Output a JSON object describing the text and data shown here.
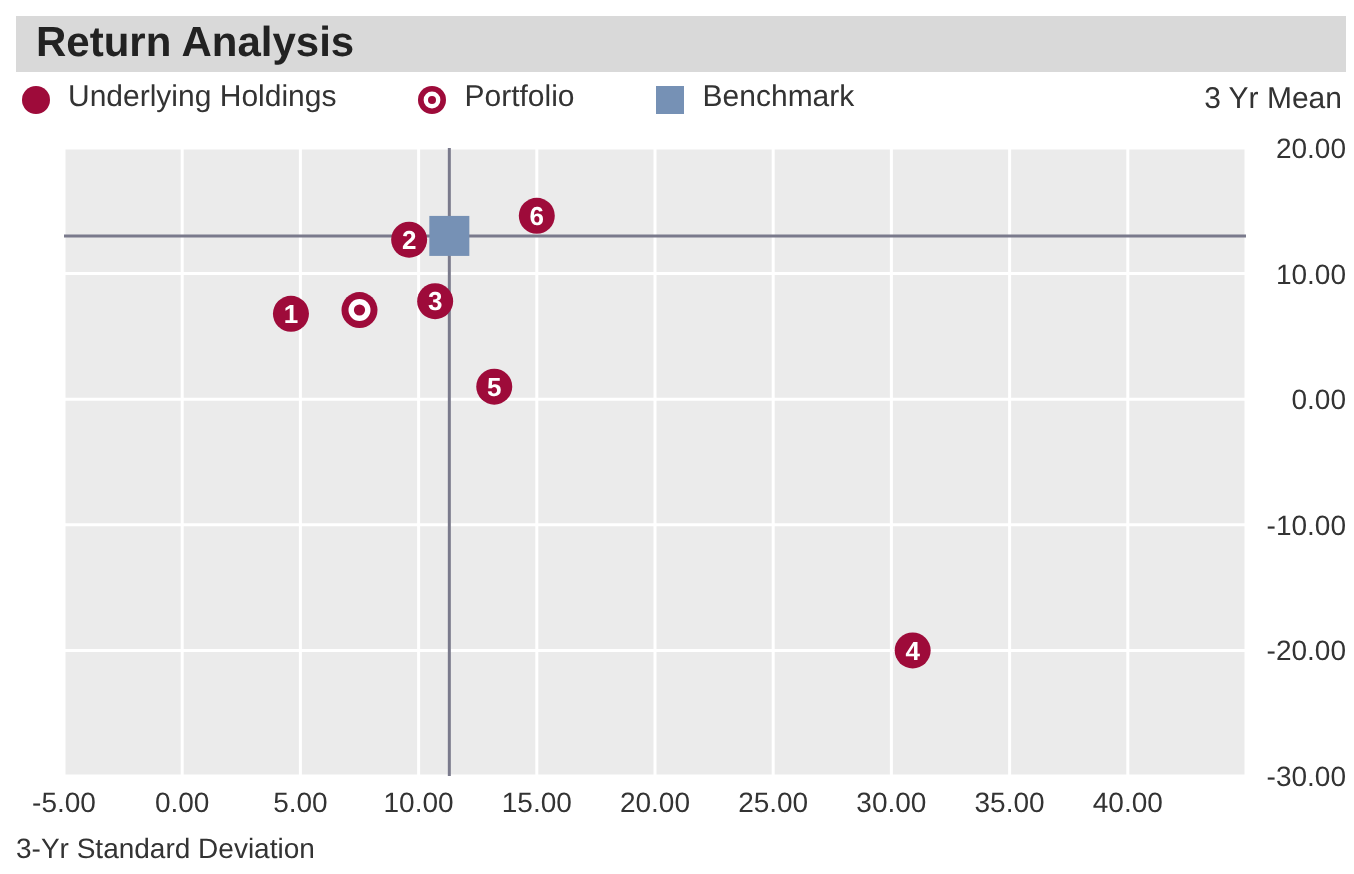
{
  "chart_data": {
    "type": "scatter",
    "title": "Return Analysis",
    "xlabel": "3-Yr Standard Deviation",
    "ylabel": "3 Yr Mean",
    "xlim": [
      -5,
      45
    ],
    "xticks": [
      {
        "value": -5,
        "label": "-5.00"
      },
      {
        "value": 0,
        "label": "0.00"
      },
      {
        "value": 5,
        "label": "5.00"
      },
      {
        "value": 10,
        "label": "10.00"
      },
      {
        "value": 15,
        "label": "15.00"
      },
      {
        "value": 20,
        "label": "20.00"
      },
      {
        "value": 25,
        "label": "25.00"
      },
      {
        "value": 30,
        "label": "30.00"
      },
      {
        "value": 35,
        "label": "35.00"
      },
      {
        "value": 40,
        "label": "40.00"
      }
    ],
    "ylim": [
      -30,
      20
    ],
    "yticks": [
      {
        "value": -30,
        "label": "-30.00"
      },
      {
        "value": -20,
        "label": "-20.00"
      },
      {
        "value": -10,
        "label": "-10.00"
      },
      {
        "value": 0,
        "label": "0.00"
      },
      {
        "value": 10,
        "label": "10.00"
      },
      {
        "value": 20,
        "label": "20.00"
      }
    ],
    "grid": true,
    "legend": "top left",
    "series": [
      {
        "name": "Underlying Holdings",
        "color": "#9e0b3a",
        "marker": "circle",
        "x": [
          4.6,
          9.6,
          10.7,
          30.9,
          13.2,
          15.0
        ],
        "values": [
          6.8,
          12.7,
          7.8,
          -20.0,
          1.0,
          14.6
        ]
      },
      {
        "name": "Portfolio",
        "color": "#9e0b3a",
        "marker": "circle",
        "x": [
          7.5
        ],
        "values": [
          7.1
        ]
      },
      {
        "name": "Benchmark",
        "color": "#7691b5",
        "marker": "square",
        "x": [
          11.3
        ],
        "values": [
          13.0
        ]
      }
    ],
    "annotations": [
      {
        "text": "1",
        "x": 4.6,
        "y": 6.8
      },
      {
        "text": "2",
        "x": 9.6,
        "y": 12.7
      },
      {
        "text": "3",
        "x": 10.7,
        "y": 7.8
      },
      {
        "text": "4",
        "x": 30.9,
        "y": -20.0
      },
      {
        "text": "5",
        "x": 13.2,
        "y": 1.0
      },
      {
        "text": "6",
        "x": 15.0,
        "y": 14.6
      }
    ],
    "ref_lines": [
      {
        "axis": "x",
        "value": 11.3,
        "color": "#7a7a8c"
      },
      {
        "axis": "y",
        "value": 13.0,
        "color": "#7a7a8c"
      }
    ]
  }
}
